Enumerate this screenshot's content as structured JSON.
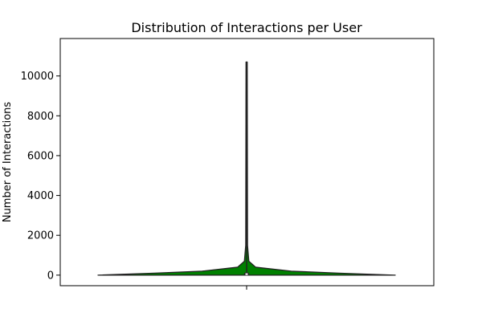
{
  "chart_data": {
    "type": "violin",
    "title": "Distribution of Interactions per User",
    "xlabel": "",
    "ylabel": "Number of Interactions",
    "ylim": [
      -530,
      11880
    ],
    "y_ticks": [
      0,
      2000,
      4000,
      6000,
      8000,
      10000
    ],
    "y_tick_labels": [
      "0",
      "2000",
      "4000",
      "6000",
      "8000",
      "10000"
    ],
    "x_ticks": [
      ""
    ],
    "grid": false,
    "legend": "none",
    "colors": {
      "violin_fill": "#008000",
      "violin_edge": "#222222",
      "box": "#222222",
      "median": "#ffffff"
    },
    "series": [
      {
        "min": 0,
        "max": 10700,
        "q1": 20,
        "median": 50,
        "q3": 120,
        "density_profile": [
          {
            "y": 0,
            "width": 1.0
          },
          {
            "y": 100,
            "width": 0.62
          },
          {
            "y": 200,
            "width": 0.3
          },
          {
            "y": 400,
            "width": 0.06
          },
          {
            "y": 700,
            "width": 0.015
          },
          {
            "y": 1500,
            "width": 0.006
          },
          {
            "y": 10700,
            "width": 0.004
          }
        ]
      }
    ]
  }
}
